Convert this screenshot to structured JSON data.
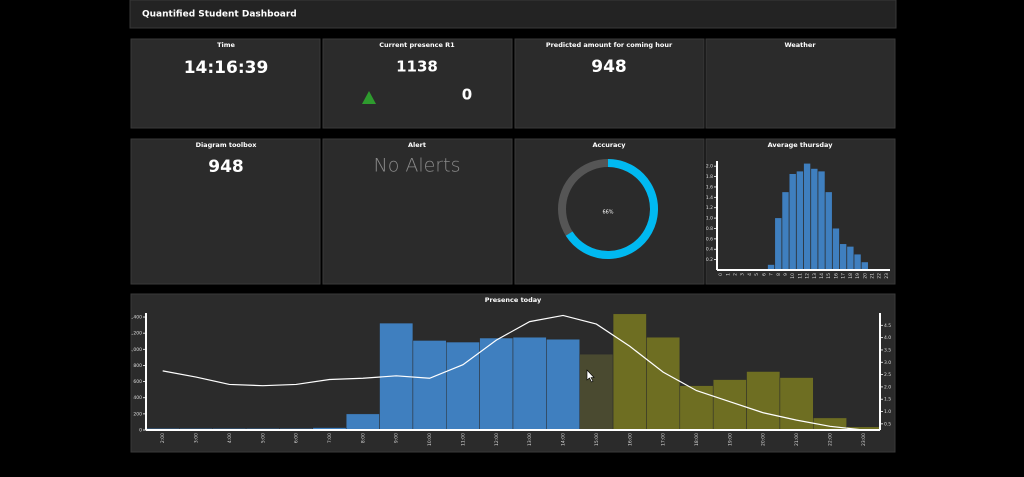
{
  "header": {
    "title": "Quantified Student Dashboard"
  },
  "tiles": [
    {
      "title": "Time",
      "value": "14:16:39"
    },
    {
      "title": "Current presence R1",
      "value": "1138",
      "change": "0"
    },
    {
      "title": "Predicted amount for coming hour",
      "value": "948"
    },
    {
      "title": "Weather"
    },
    {
      "title": "Diagram toolbox",
      "value": "948"
    },
    {
      "title": "Alert",
      "value": "No Alerts"
    }
  ],
  "chart_data": [
    {
      "type": "donut",
      "title": "Accuracy",
      "values": [
        66
      ],
      "value_labels": [
        "66%"
      ],
      "color": "#00b9f1",
      "track_color": "#555555"
    },
    {
      "type": "bar",
      "title": "Average thursday",
      "categories": [
        "0",
        "1",
        "2",
        "3",
        "4",
        "5",
        "6",
        "7",
        "8",
        "9",
        "10",
        "11",
        "12",
        "13",
        "14",
        "15",
        "16",
        "17",
        "18",
        "19",
        "20",
        "21",
        "22",
        "23"
      ],
      "values": [
        0,
        0,
        0,
        0,
        0,
        0,
        0,
        0.1,
        1.0,
        1.5,
        1.85,
        1.9,
        2.05,
        1.95,
        1.9,
        1.5,
        0.8,
        0.5,
        0.45,
        0.3,
        0.15,
        0,
        0,
        0
      ],
      "color": "#3f7fbf",
      "ylim": [
        0,
        2.1
      ],
      "yticks": [
        0.2,
        0.4,
        0.6,
        0.8,
        {
          "value": 1,
          "label": "1.0"
        },
        1.2,
        1.4,
        1.6,
        1.8,
        {
          "value": 2,
          "label": "2.0"
        }
      ]
    },
    {
      "type": "bar_line",
      "title": "Presence today",
      "categories": [
        "2:00",
        "3:00",
        "4:00",
        "5:00",
        "6:00",
        "7:00",
        "8:00",
        "9:00",
        "10:00",
        "11:00",
        "12:00",
        "13:00",
        "14:00",
        "15:00",
        "16:00",
        "17:00",
        "18:00",
        "19:00",
        "20:00",
        "21:00",
        "22:00",
        "23:00"
      ],
      "series": [
        {
          "type": "bar",
          "values": [
            20,
            20,
            20,
            20,
            20,
            30,
            200,
            1325,
            1110,
            1090,
            1140,
            1150,
            1125,
            940,
            1440,
            1150,
            550,
            625,
            725,
            650,
            150,
            40
          ],
          "colors": [
            "#3f7fbf",
            "#3f7fbf",
            "#3f7fbf",
            "#3f7fbf",
            "#3f7fbf",
            "#3f7fbf",
            "#3f7fbf",
            "#3f7fbf",
            "#3f7fbf",
            "#3f7fbf",
            "#3f7fbf",
            "#3f7fbf",
            "#3f7fbf",
            "#4a4a30",
            "#6e6e22",
            "#6e6e22",
            "#6e6e22",
            "#6e6e22",
            "#6e6e22",
            "#6e6e22",
            "#6e6e22",
            "#6e6e22"
          ]
        },
        {
          "type": "line",
          "axis": "y2",
          "color": "#ffffff",
          "values": [
            2.65,
            2.4,
            2.1,
            2.05,
            2.1,
            2.3,
            2.35,
            2.45,
            2.35,
            2.9,
            3.9,
            4.65,
            4.9,
            4.55,
            3.65,
            2.6,
            1.85,
            1.4,
            0.95,
            0.65,
            0.4,
            0.25
          ]
        }
      ],
      "ylim": [
        0,
        1450
      ],
      "yticks": [
        0,
        200,
        400,
        600,
        800,
        {
          "value": 1000,
          "label": "1,000"
        },
        {
          "value": 1200,
          "label": "1,200"
        },
        {
          "value": 1400,
          "label": "1,400"
        }
      ],
      "y2lim": [
        0.25,
        5.0
      ],
      "y2ticks": [
        0.5,
        {
          "value": 1,
          "label": "1.0"
        },
        1.5,
        {
          "value": 2,
          "label": "2.0"
        },
        2.5,
        {
          "value": 3,
          "label": "3.0"
        },
        3.5,
        {
          "value": 4,
          "label": "4.0"
        },
        4.5
      ]
    }
  ]
}
